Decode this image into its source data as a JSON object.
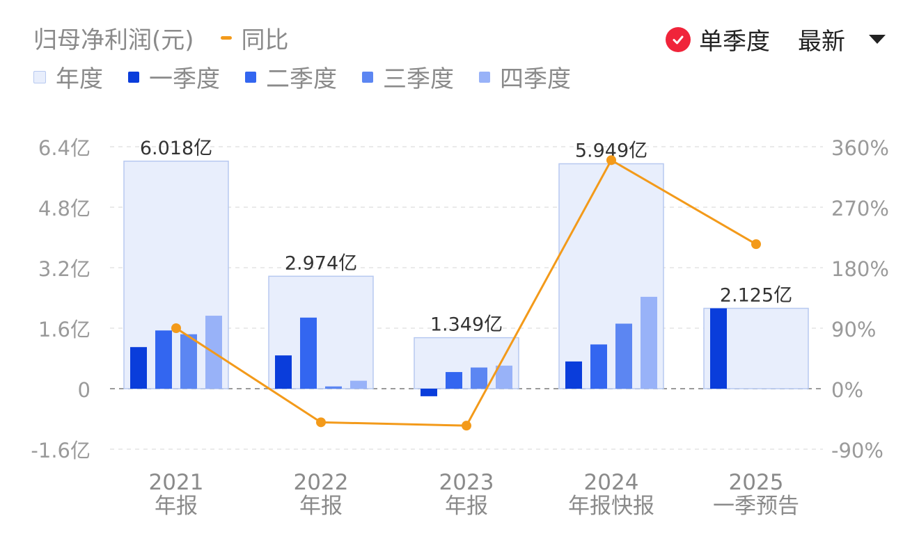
{
  "legend": {
    "title": "归母净利润(元)",
    "yoy_label": "同比",
    "annual_label": "年度",
    "q1_label": "一季度",
    "q2_label": "二季度",
    "q3_label": "三季度",
    "q4_label": "四季度"
  },
  "controls": {
    "single_quarter_label": "单季度",
    "single_quarter_checked": true,
    "sort_label": "最新",
    "check_icon": "check-circle-icon",
    "dropdown_icon": "caret-down-icon"
  },
  "colors": {
    "annual_fill": "#E8EEFC",
    "annual_border": "#B7C9F0",
    "q1": "#0A3DDB",
    "q2": "#3366F0",
    "q3": "#5C86F2",
    "q4": "#98B2F8",
    "yoy": "#F39A1A",
    "check": "#F0243A"
  },
  "chart_data": {
    "type": "bar",
    "categories": [
      {
        "year": "2021",
        "kind": "年报"
      },
      {
        "year": "2022",
        "kind": "年报"
      },
      {
        "year": "2023",
        "kind": "年报"
      },
      {
        "year": "2024",
        "kind": "年报快报"
      },
      {
        "year": "2025",
        "kind": "一季预告"
      }
    ],
    "annual": {
      "values": [
        6.018,
        2.974,
        1.349,
        5.949,
        2.125
      ],
      "labels": [
        "6.018亿",
        "2.974亿",
        "1.349亿",
        "5.949亿",
        "2.125亿"
      ]
    },
    "quarters": [
      [
        1.1,
        1.54,
        1.44,
        1.93
      ],
      [
        0.88,
        1.88,
        0.06,
        0.21
      ],
      [
        -0.2,
        0.44,
        0.56,
        0.61
      ],
      [
        0.72,
        1.17,
        1.72,
        2.43
      ],
      [
        2.125,
        null,
        null,
        null
      ]
    ],
    "yoy": [
      0.9,
      -0.5,
      -0.55,
      3.4,
      2.15
    ],
    "y_left": {
      "ticks": [
        6.4,
        4.8,
        3.2,
        1.6,
        0,
        -1.6
      ],
      "tick_labels": [
        "6.4亿",
        "4.8亿",
        "3.2亿",
        "1.6亿",
        "0",
        "-1.6亿"
      ],
      "range": [
        -1.6,
        6.4
      ]
    },
    "y_right": {
      "ticks": [
        3.6,
        2.7,
        1.8,
        0.9,
        0,
        -0.9
      ],
      "tick_labels": [
        "360%",
        "270%",
        "180%",
        "90%",
        "0%",
        "-90%"
      ],
      "range": [
        -0.9,
        3.6
      ]
    },
    "grid": true
  }
}
